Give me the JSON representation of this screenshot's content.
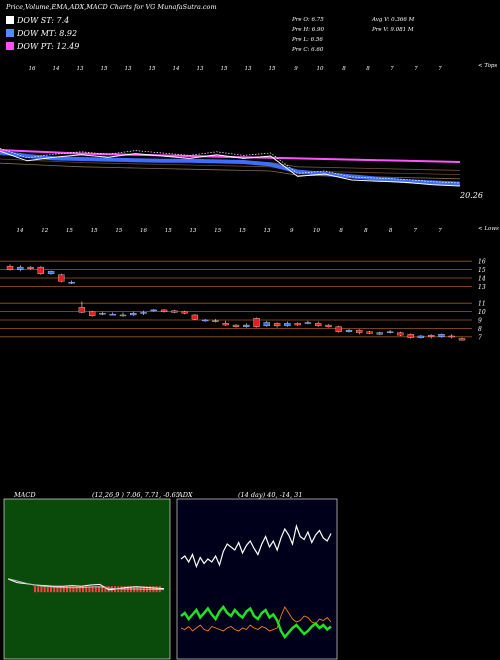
{
  "header": {
    "title": "Price,Volume,EMA,ADX,MACD Charts for VG MunafaSutra.com",
    "legend": [
      {
        "label": "DOW ST: 7.4",
        "color": "#ffffff"
      },
      {
        "label": "DOW MT: 8.92",
        "color": "#4f8cff"
      },
      {
        "label": "DOW PT: 12.49",
        "color": "#ff4ff0"
      }
    ],
    "stats_left": [
      "Pre  O: 6.75",
      "Pre  H: 6.90",
      "Pre  L: 6.56",
      "Pre  C: 6.60"
    ],
    "stats_right": [
      "Avg V: 0.366  M",
      "Pre  V: 9.081 M"
    ]
  },
  "ema_panel": {
    "top_tag": "< Tops",
    "low_tag": "< Lows",
    "last_value": "20.26",
    "top_labels": [
      "16",
      "14",
      "13",
      "15",
      "13",
      "15",
      "14",
      "13",
      "15",
      "13",
      "15",
      "9",
      "10",
      "8",
      "8",
      "7",
      "7",
      "7"
    ],
    "low_labels": [
      "14",
      "12",
      "15",
      "15",
      "15",
      "16",
      "15",
      "13",
      "15",
      "15",
      "13",
      "9",
      "10",
      "8",
      "8",
      "8",
      "7",
      "7"
    ]
  },
  "price_panel": {
    "axis_labels": [
      "16",
      "15",
      "14",
      "13",
      "11",
      "10",
      "9",
      "8",
      "7"
    ]
  },
  "macd_panel": {
    "label": "MACD",
    "values": "(12,26,9 ) 7.06, 7.71, -0.65"
  },
  "adx_panel": {
    "label": "ADX",
    "values": "(14  day) 40, -14,  31"
  },
  "chart_data": [
    {
      "type": "line",
      "title": "EMA",
      "series": [
        {
          "color": "#ff55ff",
          "values": [
            21.2,
            21.1,
            21.0,
            20.9,
            20.85,
            20.8,
            20.75,
            20.7,
            20.65,
            20.6,
            20.55,
            20.5,
            20.45,
            20.4,
            20.35,
            20.3,
            20.25,
            20.2
          ]
        },
        {
          "color": "#3f6dff",
          "values": [
            21.0,
            20.7,
            20.5,
            20.45,
            20.4,
            20.35,
            20.3,
            20.3,
            20.25,
            20.2,
            20.0,
            19.4,
            19.2,
            19.0,
            18.8,
            18.6,
            18.5,
            18.4
          ]
        },
        {
          "color": "#ffffff",
          "values": [
            21.1,
            20.3,
            20.6,
            20.8,
            20.6,
            20.9,
            20.7,
            20.5,
            20.8,
            20.5,
            20.7,
            19.0,
            19.2,
            18.7,
            18.6,
            18.5,
            18.3,
            18.2
          ]
        }
      ]
    },
    {
      "type": "bar",
      "title": "Price candles",
      "ylim": [
        6.5,
        16.5
      ],
      "candles": [
        {
          "o": 15.4,
          "c": 15.0,
          "h": 15.6,
          "l": 14.9
        },
        {
          "o": 15.0,
          "c": 15.3,
          "h": 15.5,
          "l": 14.8
        },
        {
          "o": 15.3,
          "c": 15.1,
          "h": 15.4,
          "l": 15.0
        },
        {
          "o": 15.3,
          "c": 14.5,
          "h": 15.4,
          "l": 14.4
        },
        {
          "o": 14.5,
          "c": 14.8,
          "h": 14.9,
          "l": 14.4
        },
        {
          "o": 14.4,
          "c": 13.6,
          "h": 14.5,
          "l": 13.5
        },
        {
          "o": 13.4,
          "c": 13.5,
          "h": 13.7,
          "l": 13.3
        },
        {
          "o": 10.5,
          "c": 9.9,
          "h": 11.2,
          "l": 9.8
        },
        {
          "o": 10.0,
          "c": 9.5,
          "h": 10.1,
          "l": 9.4
        },
        {
          "o": 9.7,
          "c": 9.8,
          "h": 10.0,
          "l": 9.6
        },
        {
          "o": 9.7,
          "c": 9.7,
          "h": 9.9,
          "l": 9.6
        },
        {
          "o": 9.6,
          "c": 9.5,
          "h": 9.9,
          "l": 9.4
        },
        {
          "o": 9.6,
          "c": 9.8,
          "h": 10.0,
          "l": 9.5
        },
        {
          "o": 9.8,
          "c": 9.9,
          "h": 10.1,
          "l": 9.6
        },
        {
          "o": 10.2,
          "c": 10.2,
          "h": 10.3,
          "l": 10.0
        },
        {
          "o": 10.2,
          "c": 10.0,
          "h": 10.3,
          "l": 9.9
        },
        {
          "o": 10.1,
          "c": 9.9,
          "h": 10.2,
          "l": 9.8
        },
        {
          "o": 10.0,
          "c": 9.8,
          "h": 10.1,
          "l": 9.7
        },
        {
          "o": 9.6,
          "c": 9.1,
          "h": 9.7,
          "l": 9.0
        },
        {
          "o": 9.0,
          "c": 9.0,
          "h": 9.1,
          "l": 8.8
        },
        {
          "o": 8.9,
          "c": 8.8,
          "h": 9.1,
          "l": 8.7
        },
        {
          "o": 8.6,
          "c": 8.4,
          "h": 8.9,
          "l": 8.3
        },
        {
          "o": 8.4,
          "c": 8.2,
          "h": 8.5,
          "l": 8.1
        },
        {
          "o": 8.2,
          "c": 8.4,
          "h": 8.6,
          "l": 8.1
        },
        {
          "o": 9.2,
          "c": 8.2,
          "h": 9.3,
          "l": 8.1
        },
        {
          "o": 8.3,
          "c": 8.7,
          "h": 8.9,
          "l": 8.2
        },
        {
          "o": 8.6,
          "c": 8.3,
          "h": 8.7,
          "l": 8.1
        },
        {
          "o": 8.3,
          "c": 8.6,
          "h": 8.8,
          "l": 8.2
        },
        {
          "o": 8.6,
          "c": 8.4,
          "h": 8.7,
          "l": 8.3
        },
        {
          "o": 8.6,
          "c": 8.7,
          "h": 8.9,
          "l": 8.5
        },
        {
          "o": 8.6,
          "c": 8.3,
          "h": 8.8,
          "l": 8.2
        },
        {
          "o": 8.4,
          "c": 8.2,
          "h": 8.5,
          "l": 8.1
        },
        {
          "o": 8.2,
          "c": 7.6,
          "h": 8.3,
          "l": 7.5
        },
        {
          "o": 7.6,
          "c": 7.8,
          "h": 7.9,
          "l": 7.5
        },
        {
          "o": 7.8,
          "c": 7.5,
          "h": 7.9,
          "l": 7.3
        },
        {
          "o": 7.6,
          "c": 7.4,
          "h": 7.7,
          "l": 7.3
        },
        {
          "o": 7.3,
          "c": 7.5,
          "h": 7.6,
          "l": 7.2
        },
        {
          "o": 7.6,
          "c": 7.6,
          "h": 7.8,
          "l": 7.4
        },
        {
          "o": 7.5,
          "c": 7.2,
          "h": 7.6,
          "l": 7.1
        },
        {
          "o": 7.3,
          "c": 6.9,
          "h": 7.4,
          "l": 6.8
        },
        {
          "o": 6.9,
          "c": 7.1,
          "h": 7.2,
          "l": 6.8
        },
        {
          "o": 7.2,
          "c": 7.0,
          "h": 7.3,
          "l": 6.8
        },
        {
          "o": 7.0,
          "c": 7.3,
          "h": 7.4,
          "l": 6.9
        },
        {
          "o": 7.1,
          "c": 7.0,
          "h": 7.3,
          "l": 6.8
        },
        {
          "o": 6.8,
          "c": 6.6,
          "h": 6.9,
          "l": 6.56
        }
      ]
    },
    {
      "type": "line",
      "title": "MACD",
      "series": [
        {
          "color": "#ffffff",
          "values": [
            -0.6,
            -0.9,
            -1.0,
            -1.1,
            -1.15,
            -1.2,
            -1.2,
            -1.15,
            -1.2,
            -1.1,
            -1.05,
            -1.5,
            -1.4,
            -1.3,
            -1.25,
            -1.3,
            -1.35,
            -1.4
          ]
        },
        {
          "color": "#ffffff",
          "values": [
            -0.4,
            -0.6,
            -0.8,
            -0.95,
            -1.05,
            -1.1,
            -1.15,
            -1.15,
            -1.15,
            -1.1,
            -1.08,
            -1.2,
            -1.25,
            -1.27,
            -1.27,
            -1.28,
            -1.3,
            -1.32
          ]
        }
      ]
    },
    {
      "type": "line",
      "title": "ADX",
      "series": [
        {
          "color": "#ffffff",
          "values": [
            60,
            62,
            58,
            63,
            55,
            61,
            57,
            60,
            58,
            62,
            56,
            65,
            70,
            68,
            66,
            71,
            64,
            69,
            72,
            67,
            63,
            70,
            75,
            68,
            72,
            66,
            74,
            80,
            76,
            70,
            82,
            75,
            73,
            78,
            71,
            76,
            79,
            74,
            72,
            77
          ]
        },
        {
          "color": "#ff8c1a",
          "values": [
            14,
            13,
            15,
            12,
            14,
            16,
            13,
            12,
            15,
            14,
            13,
            12,
            14,
            15,
            13,
            12,
            14,
            13,
            16,
            14,
            13,
            15,
            14,
            12,
            13,
            14,
            22,
            28,
            24,
            20,
            18,
            19,
            22,
            21,
            18,
            17,
            20,
            19,
            21,
            18
          ]
        },
        {
          "color": "#22e022",
          "values": [
            22,
            24,
            20,
            23,
            26,
            21,
            24,
            27,
            23,
            20,
            25,
            28,
            24,
            22,
            26,
            23,
            21,
            25,
            27,
            22,
            20,
            24,
            26,
            21,
            23,
            19,
            12,
            8,
            11,
            14,
            16,
            13,
            10,
            12,
            15,
            17,
            14,
            16,
            13,
            15
          ]
        }
      ]
    }
  ]
}
